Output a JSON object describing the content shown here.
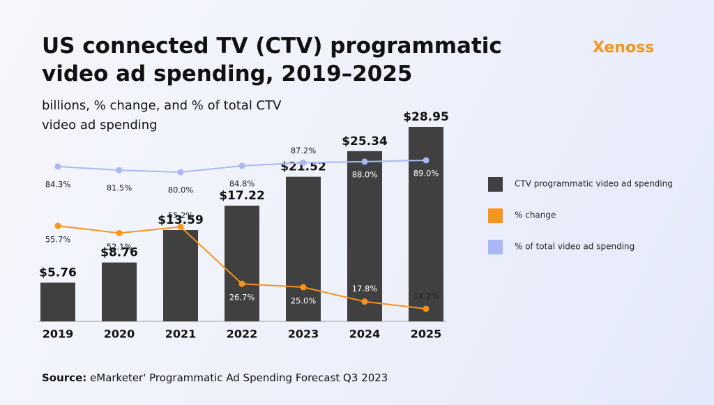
{
  "logo": "Xenoss",
  "source": {
    "label": "Source:",
    "text": "eMarketer' Programmatic Ad Spending Forecast Q3 2023"
  },
  "chart_data": {
    "type": "bar",
    "title": "US connected TV (CTV) programmatic video ad spending, 2019–2025",
    "subtitle": "billions, % change, and % of total CTV video ad spending",
    "categories": [
      "2019",
      "2020",
      "2021",
      "2022",
      "2023",
      "2024",
      "2025"
    ],
    "series": [
      {
        "name": "CTV programmatic video ad spending",
        "type": "bar",
        "color": "#404040",
        "values": [
          5.76,
          8.76,
          13.59,
          17.22,
          21.52,
          25.34,
          28.95
        ],
        "value_labels": [
          "$5.76",
          "$8.76",
          "$13.59",
          "$17.22",
          "$21.52",
          "$25.34",
          "$28.95"
        ]
      },
      {
        "name": "% change",
        "type": "line",
        "color": "#f7941d",
        "values": [
          55.7,
          52.1,
          55.2,
          26.7,
          25.0,
          17.8,
          14.2
        ],
        "value_labels": [
          "55.7%",
          "52.1%",
          "55.2%",
          "26.7%",
          "25.0%",
          "17.8%",
          "14.2%"
        ]
      },
      {
        "name": "% of total video ad spending",
        "type": "line",
        "color": "#a9b8f5",
        "values": [
          84.3,
          81.5,
          80.0,
          84.8,
          87.2,
          88.0,
          89.0
        ],
        "value_labels": [
          "84.3%",
          "81.5%",
          "80.0%",
          "84.8%",
          "87.2%",
          "88.0%",
          "89.0%"
        ]
      }
    ],
    "legend": "right"
  }
}
